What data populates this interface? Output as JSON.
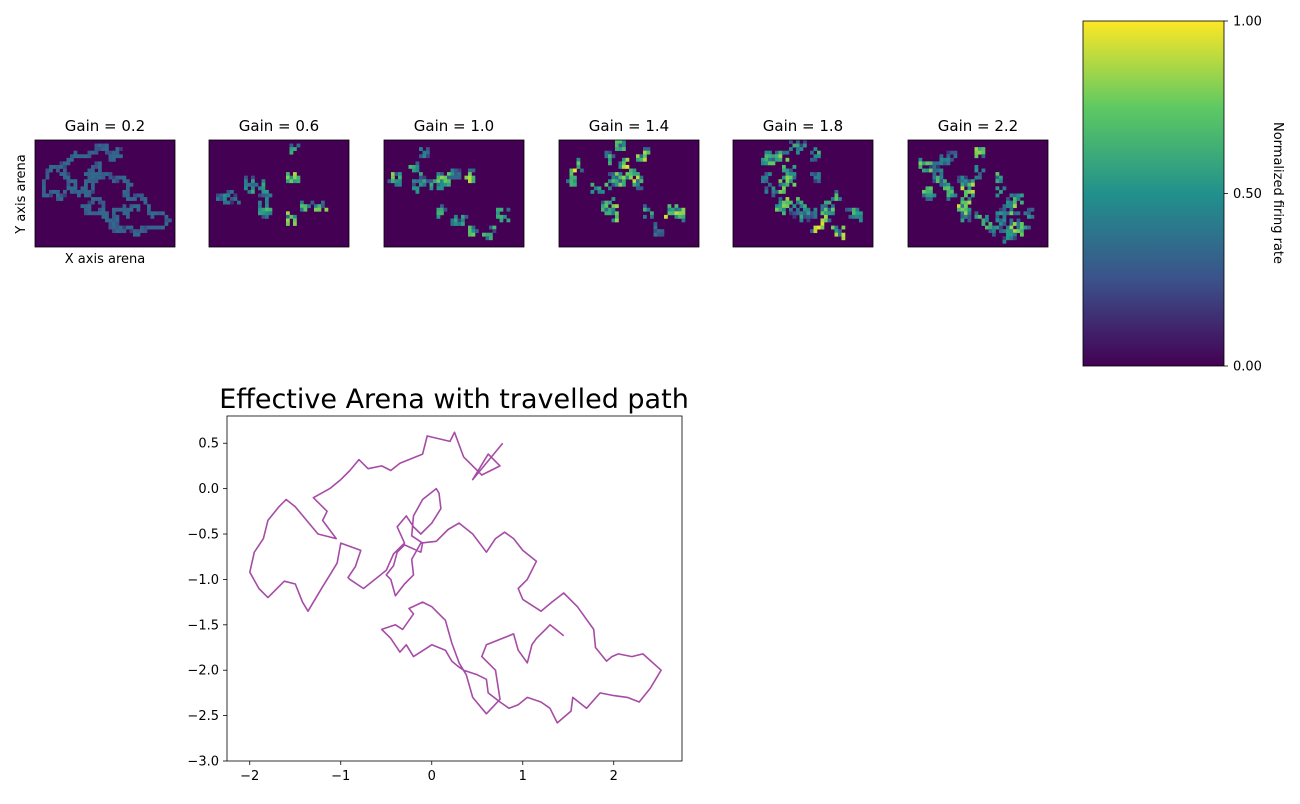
{
  "heatmaps": [
    {
      "title": "Gain = 0.2",
      "gain": 0.2,
      "peak": 0.35
    },
    {
      "title": "Gain = 0.6",
      "gain": 0.6,
      "peak": 1.0
    },
    {
      "title": "Gain = 1.0",
      "gain": 1.0,
      "peak": 1.0
    },
    {
      "title": "Gain = 1.4",
      "gain": 1.4,
      "peak": 1.0
    },
    {
      "title": "Gain = 1.8",
      "gain": 1.8,
      "peak": 1.0
    },
    {
      "title": "Gain = 2.2",
      "gain": 2.2,
      "peak": 1.0
    }
  ],
  "heatmap_axes": {
    "xlabel": "X axis arena",
    "ylabel": "Y axis arena"
  },
  "colorbar": {
    "label": "Normalized firing rate",
    "range": [
      0,
      1
    ],
    "ticks": [
      "0.00",
      "0.50",
      "1.00"
    ],
    "colormap": "viridis",
    "colors": [
      "#440154",
      "#3b528b",
      "#21918c",
      "#5ec962",
      "#fde725"
    ]
  },
  "chart_data": {
    "type": "line",
    "title": "Effective Arena with travelled path",
    "xlabel": "",
    "ylabel": "",
    "xlim": [
      -2.25,
      2.75
    ],
    "ylim": [
      -3.0,
      0.8
    ],
    "xticks": [
      -2,
      -1,
      0,
      1,
      2
    ],
    "xtick_labels": [
      "−2",
      "−1",
      "0",
      "1",
      "2"
    ],
    "yticks": [
      0.5,
      0.0,
      -0.5,
      -1.0,
      -1.5,
      -2.0,
      -2.5,
      -3.0
    ],
    "ytick_labels": [
      "0.5",
      "0.0",
      "−0.5",
      "−1.0",
      "−1.5",
      "−2.0",
      "−2.5",
      "−3.0"
    ],
    "color": "#a64ca6",
    "series": [
      {
        "x": [
          0.78,
          0.45,
          0.62,
          0.75,
          0.55,
          0.35,
          0.25,
          0.2,
          -0.05,
          -0.1,
          -0.35,
          -0.45,
          -0.55,
          -0.7,
          -0.8,
          -0.9,
          -1.0,
          -1.12,
          -1.3,
          -1.15,
          -1.2,
          -1.05,
          -1.25,
          -1.5,
          -1.6,
          -1.68,
          -1.8,
          -1.85,
          -1.95,
          -2.0,
          -1.9,
          -1.8,
          -1.62,
          -1.5,
          -1.42,
          -1.36,
          -1.2,
          -1.1,
          -1.04,
          -1.0,
          -0.78,
          -0.84,
          -0.92,
          -0.9,
          -0.75,
          -0.5,
          -0.42,
          -0.3,
          -0.38,
          -0.28,
          -0.2,
          -0.12,
          0.0,
          0.1,
          0.08,
          0.05,
          -0.1,
          -0.2,
          -0.22,
          -0.1,
          -0.12,
          -0.3,
          -0.38,
          -0.42,
          -0.5,
          -0.45,
          -0.4,
          -0.3,
          -0.2,
          -0.22,
          -0.12,
          0.05,
          0.18,
          0.3,
          0.45,
          0.6,
          0.7,
          0.8,
          0.9,
          1.0,
          1.15,
          1.05,
          0.95,
          1.0,
          1.2,
          1.32,
          1.45,
          1.6,
          1.78,
          1.8,
          1.92,
          1.98,
          2.05,
          2.2,
          2.32,
          2.52,
          2.4,
          2.28,
          2.15,
          2.0,
          1.85,
          1.7,
          1.55,
          1.53,
          1.45,
          1.38,
          1.3,
          1.2,
          1.05,
          0.95,
          0.85,
          0.75,
          0.62,
          0.6,
          0.5,
          0.35,
          0.28,
          0.22,
          0.15,
          0.0,
          -0.2,
          -0.28,
          -0.35,
          -0.45,
          -0.5,
          -0.55,
          -0.4,
          -0.32,
          -0.2,
          -0.25,
          -0.1,
          0.0,
          0.15,
          0.22,
          0.3,
          0.38,
          0.45,
          0.6,
          0.75,
          0.7,
          0.55,
          0.6,
          0.9,
          0.95,
          1.05,
          1.1,
          1.15,
          1.25,
          1.3,
          1.45
        ],
        "y": [
          0.5,
          0.1,
          0.38,
          0.25,
          0.15,
          0.35,
          0.62,
          0.52,
          0.58,
          0.38,
          0.28,
          0.2,
          0.25,
          0.22,
          0.32,
          0.2,
          0.1,
          0.0,
          -0.1,
          -0.25,
          -0.35,
          -0.55,
          -0.5,
          -0.2,
          -0.12,
          -0.2,
          -0.35,
          -0.55,
          -0.7,
          -0.92,
          -1.1,
          -1.2,
          -1.02,
          -1.05,
          -1.25,
          -1.35,
          -1.08,
          -0.92,
          -0.82,
          -0.6,
          -0.68,
          -0.86,
          -0.98,
          -1.0,
          -1.1,
          -0.9,
          -0.72,
          -0.6,
          -0.42,
          -0.3,
          -0.42,
          -0.5,
          -0.38,
          -0.22,
          -0.05,
          0.0,
          -0.12,
          -0.3,
          -0.52,
          -0.6,
          -0.7,
          -0.62,
          -0.7,
          -0.85,
          -0.95,
          -1.0,
          -1.18,
          -1.05,
          -0.95,
          -0.78,
          -0.6,
          -0.58,
          -0.45,
          -0.38,
          -0.5,
          -0.7,
          -0.55,
          -0.48,
          -0.55,
          -0.68,
          -0.8,
          -1.0,
          -1.1,
          -1.22,
          -1.35,
          -1.25,
          -1.15,
          -1.3,
          -1.55,
          -1.75,
          -1.9,
          -1.85,
          -1.82,
          -1.85,
          -1.82,
          -2.0,
          -2.2,
          -2.35,
          -2.3,
          -2.28,
          -2.25,
          -2.42,
          -2.3,
          -2.45,
          -2.52,
          -2.58,
          -2.42,
          -2.35,
          -2.3,
          -2.38,
          -2.42,
          -2.35,
          -2.25,
          -2.1,
          -2.05,
          -2.0,
          -1.95,
          -1.9,
          -1.78,
          -1.72,
          -1.85,
          -1.72,
          -1.8,
          -1.65,
          -1.6,
          -1.55,
          -1.5,
          -1.55,
          -1.38,
          -1.32,
          -1.25,
          -1.3,
          -1.45,
          -1.7,
          -1.92,
          -2.05,
          -2.3,
          -2.48,
          -2.32,
          -2.0,
          -1.85,
          -1.72,
          -1.6,
          -1.78,
          -1.92,
          -1.72,
          -1.65,
          -1.55,
          -1.5,
          -1.62
        ]
      }
    ]
  }
}
